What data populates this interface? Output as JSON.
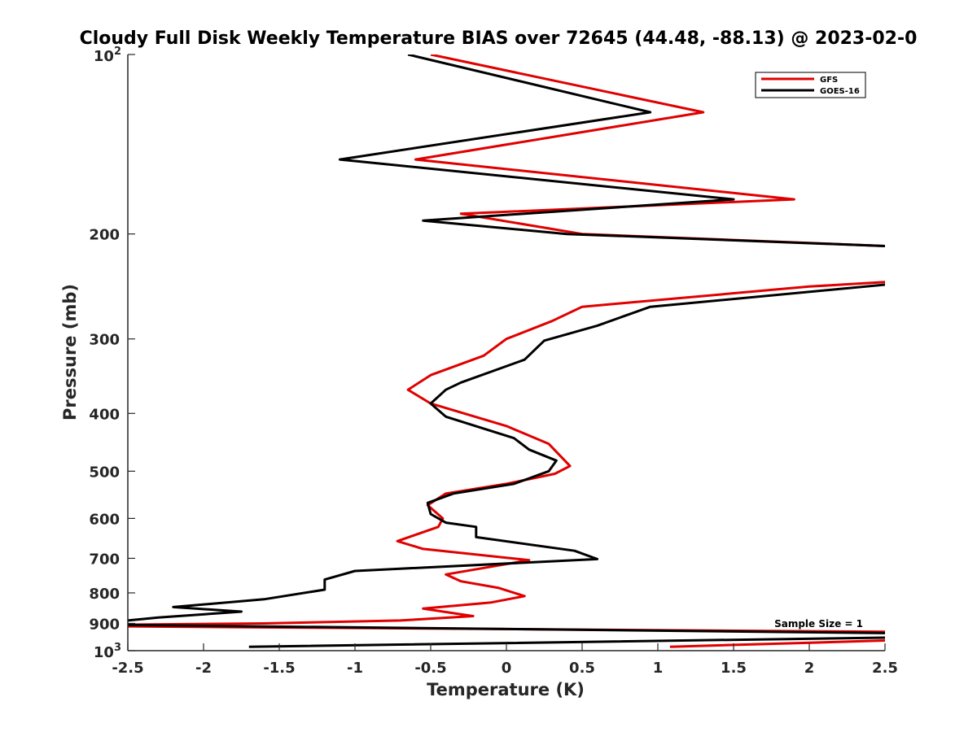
{
  "chart_data": {
    "type": "line",
    "title": "Cloudy Full Disk Weekly Temperature BIAS over 72645 (44.48, -88.13) @ 2023-02-0",
    "xlabel": "Temperature (K)",
    "ylabel": "Pressure (mb)",
    "xlim": [
      -2.5,
      2.5
    ],
    "ylim": [
      100,
      1000
    ],
    "y_scale": "log",
    "y_reversed": true,
    "grid": false,
    "legend_position": "top-right",
    "x_ticks": [
      "-2.5",
      "-2",
      "-1.5",
      "-1",
      "-0.5",
      "0",
      "0.5",
      "1",
      "1.5",
      "2",
      "2.5"
    ],
    "x_tick_values": [
      -2.5,
      -2,
      -1.5,
      -1,
      -0.5,
      0,
      0.5,
      1,
      1.5,
      2,
      2.5
    ],
    "y_ticks": [
      {
        "value": 100,
        "base": "10",
        "exp": "2"
      },
      {
        "value": 200,
        "label": "200"
      },
      {
        "value": 300,
        "label": "300"
      },
      {
        "value": 400,
        "label": "400"
      },
      {
        "value": 500,
        "label": "500"
      },
      {
        "value": 600,
        "label": "600"
      },
      {
        "value": 700,
        "label": "700"
      },
      {
        "value": 800,
        "label": "800"
      },
      {
        "value": 900,
        "label": "900"
      },
      {
        "value": 1000,
        "base": "10",
        "exp": "3"
      }
    ],
    "annotation": "Sample Size = 1",
    "series": [
      {
        "name": "GFS",
        "color": "#e00000",
        "points": [
          [
            -0.5,
            100
          ],
          [
            1.3,
            125
          ],
          [
            -0.6,
            150
          ],
          [
            1.9,
            175
          ],
          [
            -0.3,
            185
          ],
          [
            0.5,
            200
          ],
          [
            2.6,
            210
          ],
          [
            null,
            null
          ],
          [
            2.6,
            240
          ],
          [
            2.0,
            245
          ],
          [
            0.5,
            265
          ],
          [
            0.3,
            280
          ],
          [
            0.0,
            300
          ],
          [
            -0.15,
            320
          ],
          [
            -0.5,
            345
          ],
          [
            -0.65,
            365
          ],
          [
            -0.5,
            385
          ],
          [
            0.0,
            420
          ],
          [
            0.28,
            450
          ],
          [
            0.42,
            490
          ],
          [
            0.32,
            505
          ],
          [
            0.0,
            525
          ],
          [
            -0.4,
            545
          ],
          [
            -0.52,
            570
          ],
          [
            -0.42,
            600
          ],
          [
            -0.45,
            620
          ],
          [
            -0.72,
            655
          ],
          [
            -0.55,
            675
          ],
          [
            0.15,
            705
          ],
          [
            -0.4,
            745
          ],
          [
            -0.3,
            765
          ],
          [
            -0.05,
            785
          ],
          [
            0.12,
            810
          ],
          [
            -0.1,
            830
          ],
          [
            -0.55,
            850
          ],
          [
            -0.22,
            875
          ],
          [
            -0.7,
            890
          ],
          [
            -1.6,
            900
          ],
          [
            -2.6,
            905
          ],
          [
            null,
            null
          ],
          [
            -2.6,
            910
          ],
          [
            2.6,
            930
          ],
          [
            2.6,
            960
          ],
          [
            1.08,
            985
          ]
        ]
      },
      {
        "name": "GOES-16",
        "color": "#000000",
        "points": [
          [
            -0.65,
            100
          ],
          [
            0.95,
            125
          ],
          [
            -1.1,
            150
          ],
          [
            1.5,
            175
          ],
          [
            -0.55,
            190
          ],
          [
            0.4,
            200
          ],
          [
            2.6,
            210
          ],
          [
            null,
            null
          ],
          [
            2.6,
            242
          ],
          [
            0.95,
            265
          ],
          [
            0.6,
            285
          ],
          [
            0.25,
            302
          ],
          [
            0.12,
            325
          ],
          [
            -0.3,
            355
          ],
          [
            -0.4,
            365
          ],
          [
            -0.5,
            385
          ],
          [
            -0.4,
            405
          ],
          [
            0.05,
            440
          ],
          [
            0.15,
            460
          ],
          [
            0.33,
            480
          ],
          [
            0.28,
            500
          ],
          [
            0.05,
            525
          ],
          [
            -0.35,
            545
          ],
          [
            -0.52,
            565
          ],
          [
            -0.5,
            590
          ],
          [
            -0.4,
            610
          ],
          [
            -0.2,
            620
          ],
          [
            -0.2,
            645
          ],
          [
            0.45,
            680
          ],
          [
            0.6,
            702
          ],
          [
            -1.0,
            735
          ],
          [
            -1.2,
            760
          ],
          [
            -1.2,
            790
          ],
          [
            -1.6,
            820
          ],
          [
            -2.2,
            845
          ],
          [
            -1.75,
            860
          ],
          [
            -2.3,
            880
          ],
          [
            -2.6,
            895
          ],
          [
            null,
            null
          ],
          [
            -2.6,
            905
          ],
          [
            2.6,
            935
          ],
          [
            2.6,
            950
          ],
          [
            -1.7,
            985
          ]
        ]
      }
    ]
  }
}
